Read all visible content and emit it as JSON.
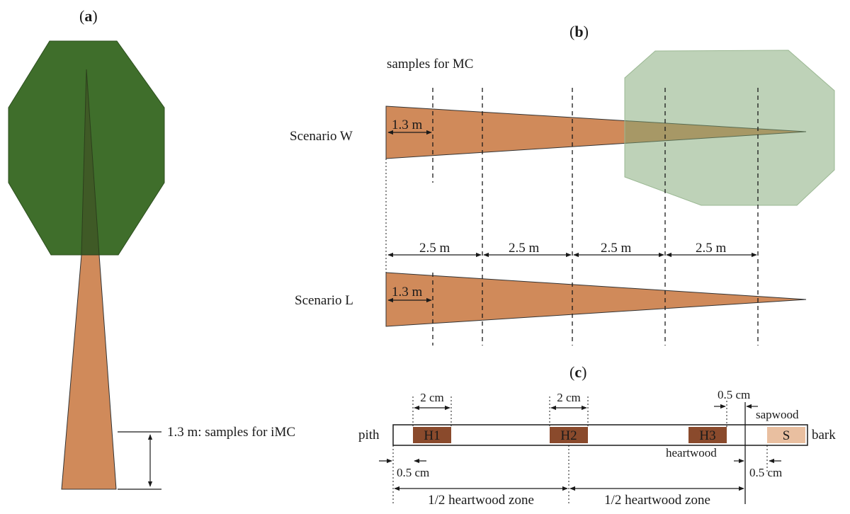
{
  "panels": {
    "a": {
      "letter": "a",
      "sample_label": "1.3 m: samples for iMC"
    },
    "b": {
      "letter": "b",
      "samples_label": "samples for MC",
      "scenario_w": "Scenario W",
      "scenario_l": "Scenario L",
      "height_label": "1.3 m",
      "segment_label": "2.5 m"
    },
    "c": {
      "letter": "c",
      "pith": "pith",
      "bark": "bark",
      "sapwood": "sapwood",
      "heartwood": "heartwood",
      "sample_width": "2 cm",
      "margin": "0.5 cm",
      "half_zone": "1/2 heartwood zone",
      "samples": [
        "H1",
        "H2",
        "H3",
        "S"
      ]
    }
  },
  "colors": {
    "crown_dark": "#3f6e2b",
    "crown_light": "#b8cfb0",
    "trunk": "#d08a5a",
    "heartwood_sample": "#8a4a2c",
    "sapwood_sample": "#e9bfa0"
  }
}
